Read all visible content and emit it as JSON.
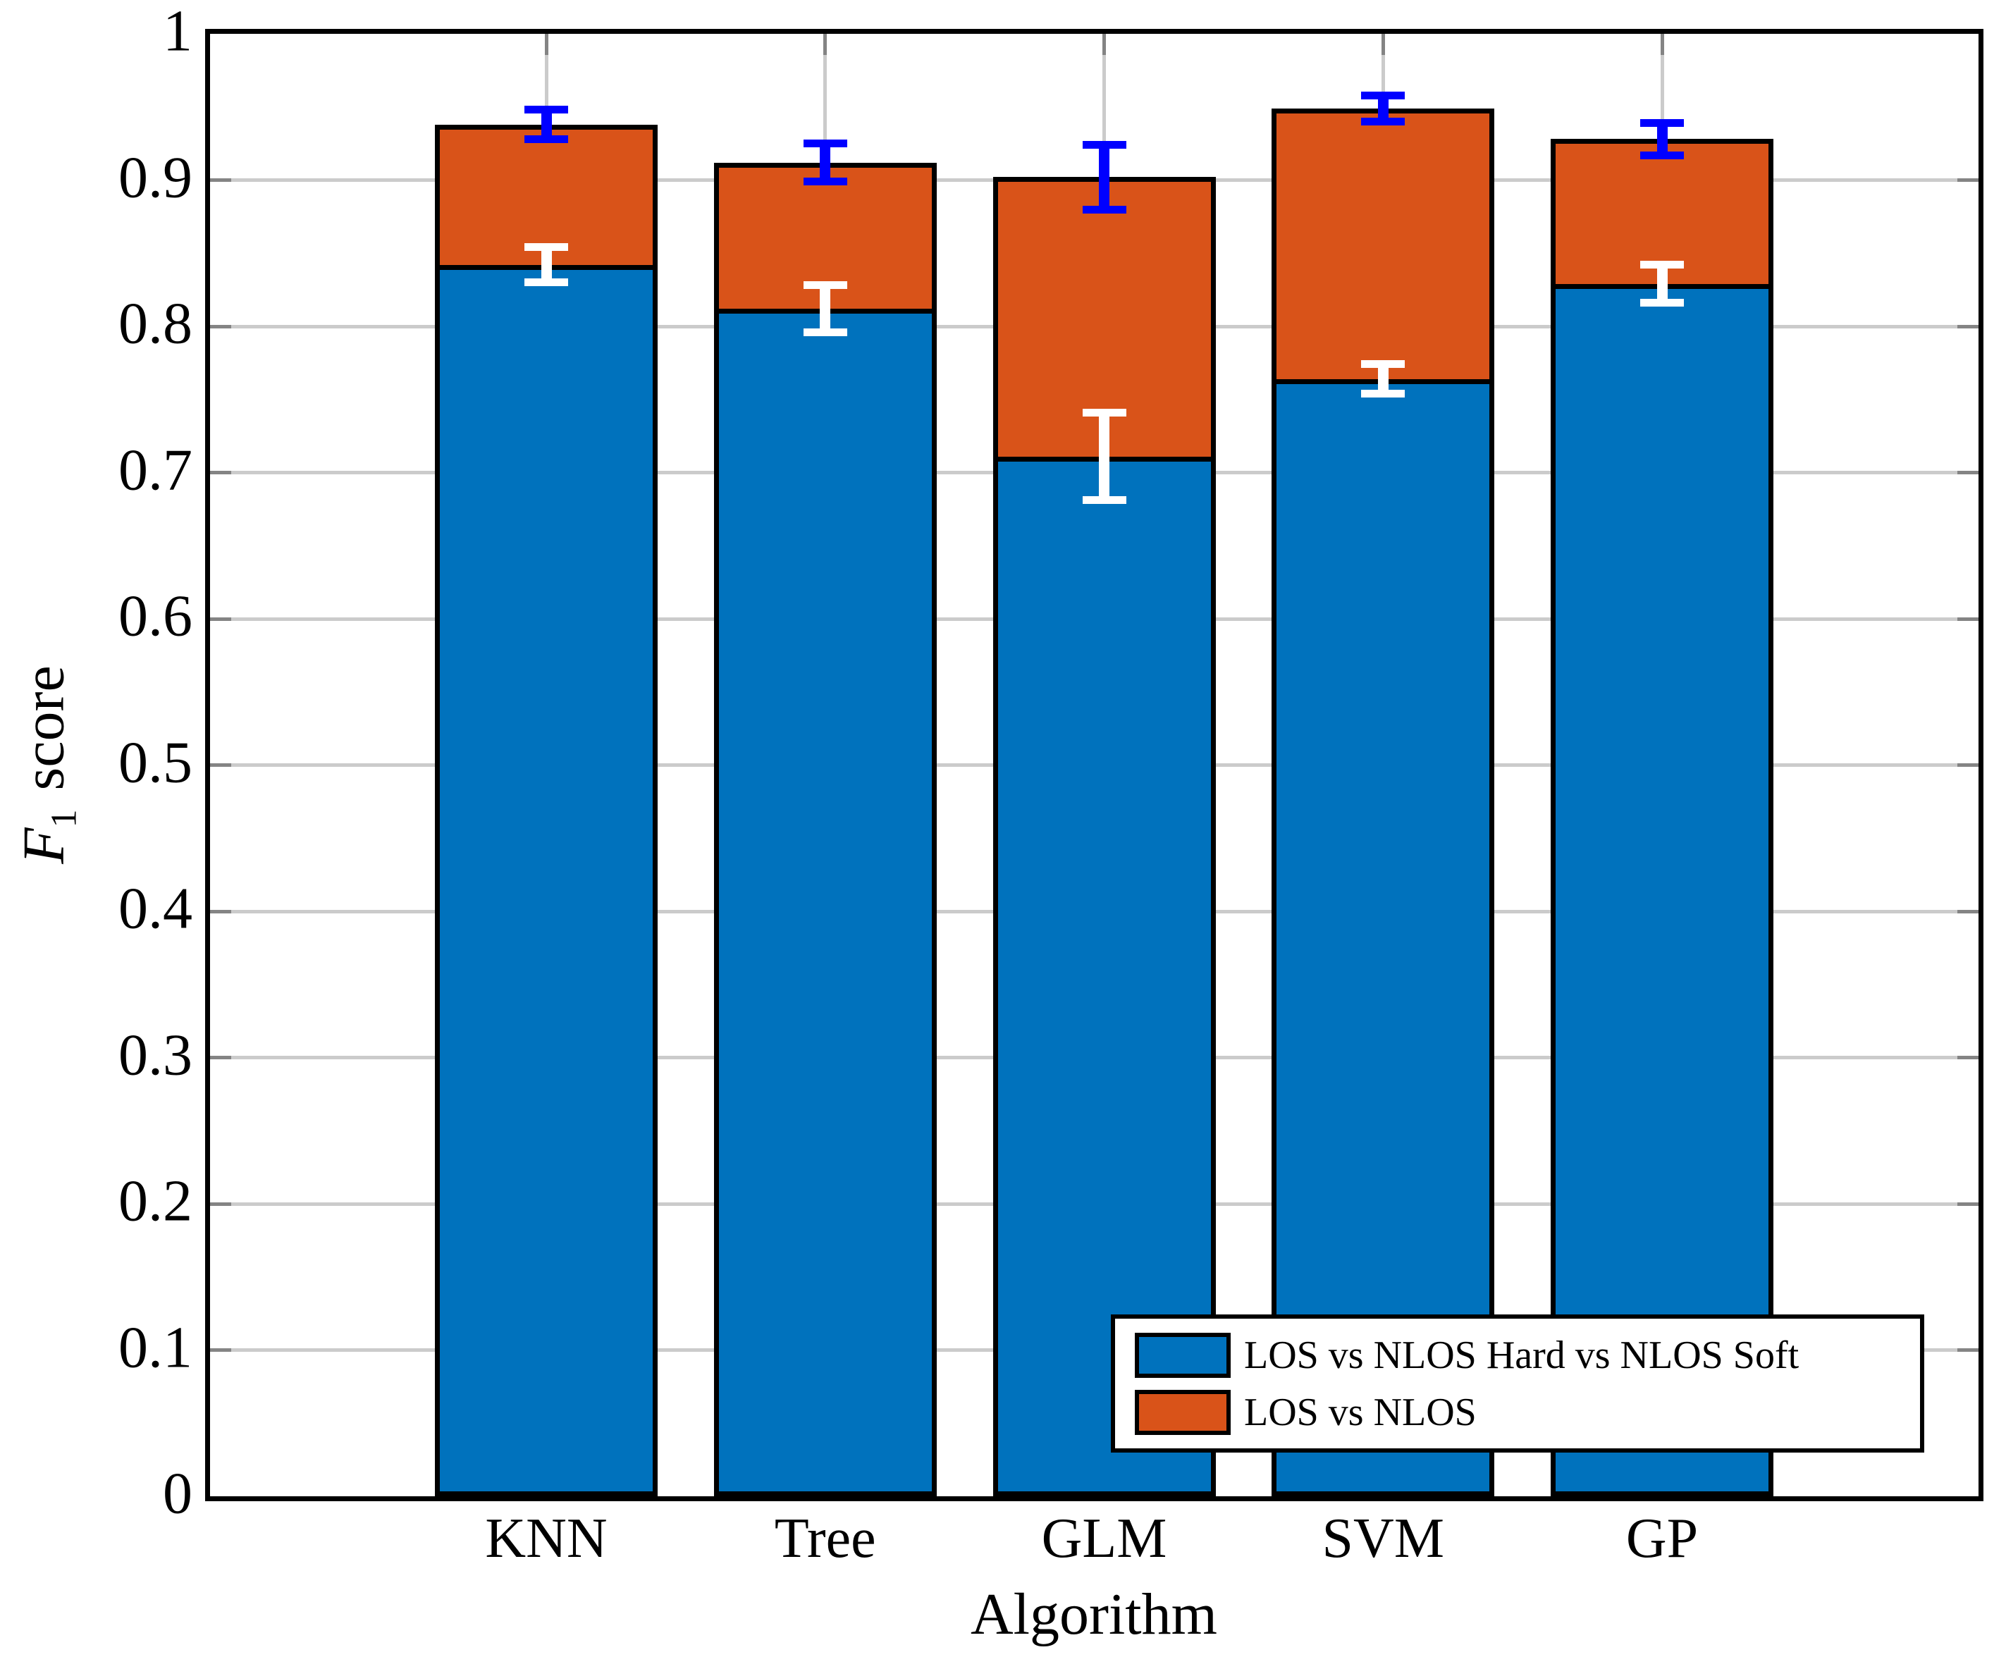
{
  "chart_data": {
    "type": "bar",
    "title": "",
    "xlabel": "Algorithm",
    "ylabel": "F1 score",
    "ylabel_parts": {
      "f": "F",
      "sub": "1",
      "rest": "score"
    },
    "categories": [
      "KNN",
      "Tree",
      "GLM",
      "SVM",
      "GP"
    ],
    "series": [
      {
        "name": "LOS vs NLOS Hard vs NLOS Soft",
        "color": "#0072BD",
        "values": [
          0.842,
          0.812,
          0.711,
          0.764,
          0.829
        ],
        "errors": [
          0.012,
          0.016,
          0.03,
          0.01,
          0.013
        ],
        "error_bar_color": "#FFFFFF"
      },
      {
        "name": "LOS vs NLOS",
        "color": "#D95319",
        "values": [
          0.938,
          0.912,
          0.902,
          0.949,
          0.928
        ],
        "errors": [
          0.01,
          0.013,
          0.022,
          0.009,
          0.011
        ],
        "error_bar_color": "#0000FF"
      }
    ],
    "stacking": "overlay-top",
    "ylim": [
      0,
      1
    ],
    "yticks": [
      0,
      0.1,
      0.2,
      0.3,
      0.4,
      0.5,
      0.6,
      0.7,
      0.8,
      0.9,
      1
    ],
    "ytick_labels": [
      "0",
      "0.1",
      "0.2",
      "0.3",
      "0.4",
      "0.5",
      "0.6",
      "0.7",
      "0.8",
      "0.9",
      "1"
    ],
    "grid": true,
    "legend_position": "south east"
  },
  "style_colors": {
    "axis": "#000000",
    "grid": "#cbcbcb",
    "tick": "#848484",
    "background": "#ffffff"
  }
}
